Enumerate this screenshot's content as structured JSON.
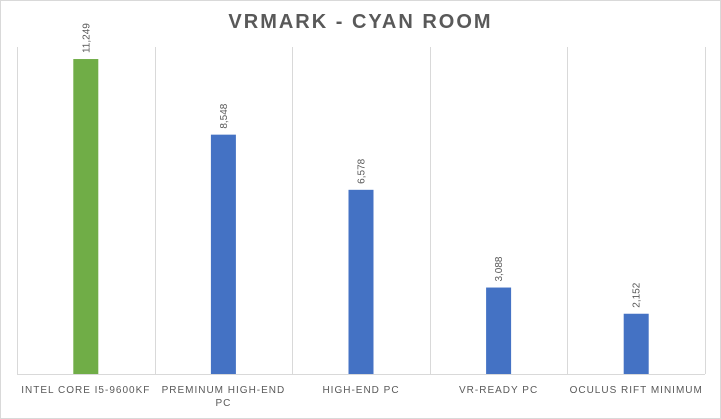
{
  "chart_data": {
    "type": "bar",
    "title": "VRMARK - CYAN ROOM",
    "categories": [
      [
        "INTEL CORE I5-9600KF"
      ],
      [
        "PREMINUM HIGH-END",
        "PC"
      ],
      [
        "HIGH-END PC"
      ],
      [
        "VR-READY PC"
      ],
      [
        "OCULUS RIFT MINIMUM"
      ]
    ],
    "values": [
      11249,
      8548,
      6578,
      3088,
      2152
    ],
    "data_labels": [
      "11,249",
      "8,548",
      "6,578",
      "3,088",
      "2,152"
    ],
    "bar_colors": [
      "#70ad47",
      "#4472c4",
      "#4472c4",
      "#4472c4",
      "#4472c4"
    ],
    "ylim": [
      0,
      12000
    ],
    "grid": "vertical category separators",
    "legend": "none"
  }
}
